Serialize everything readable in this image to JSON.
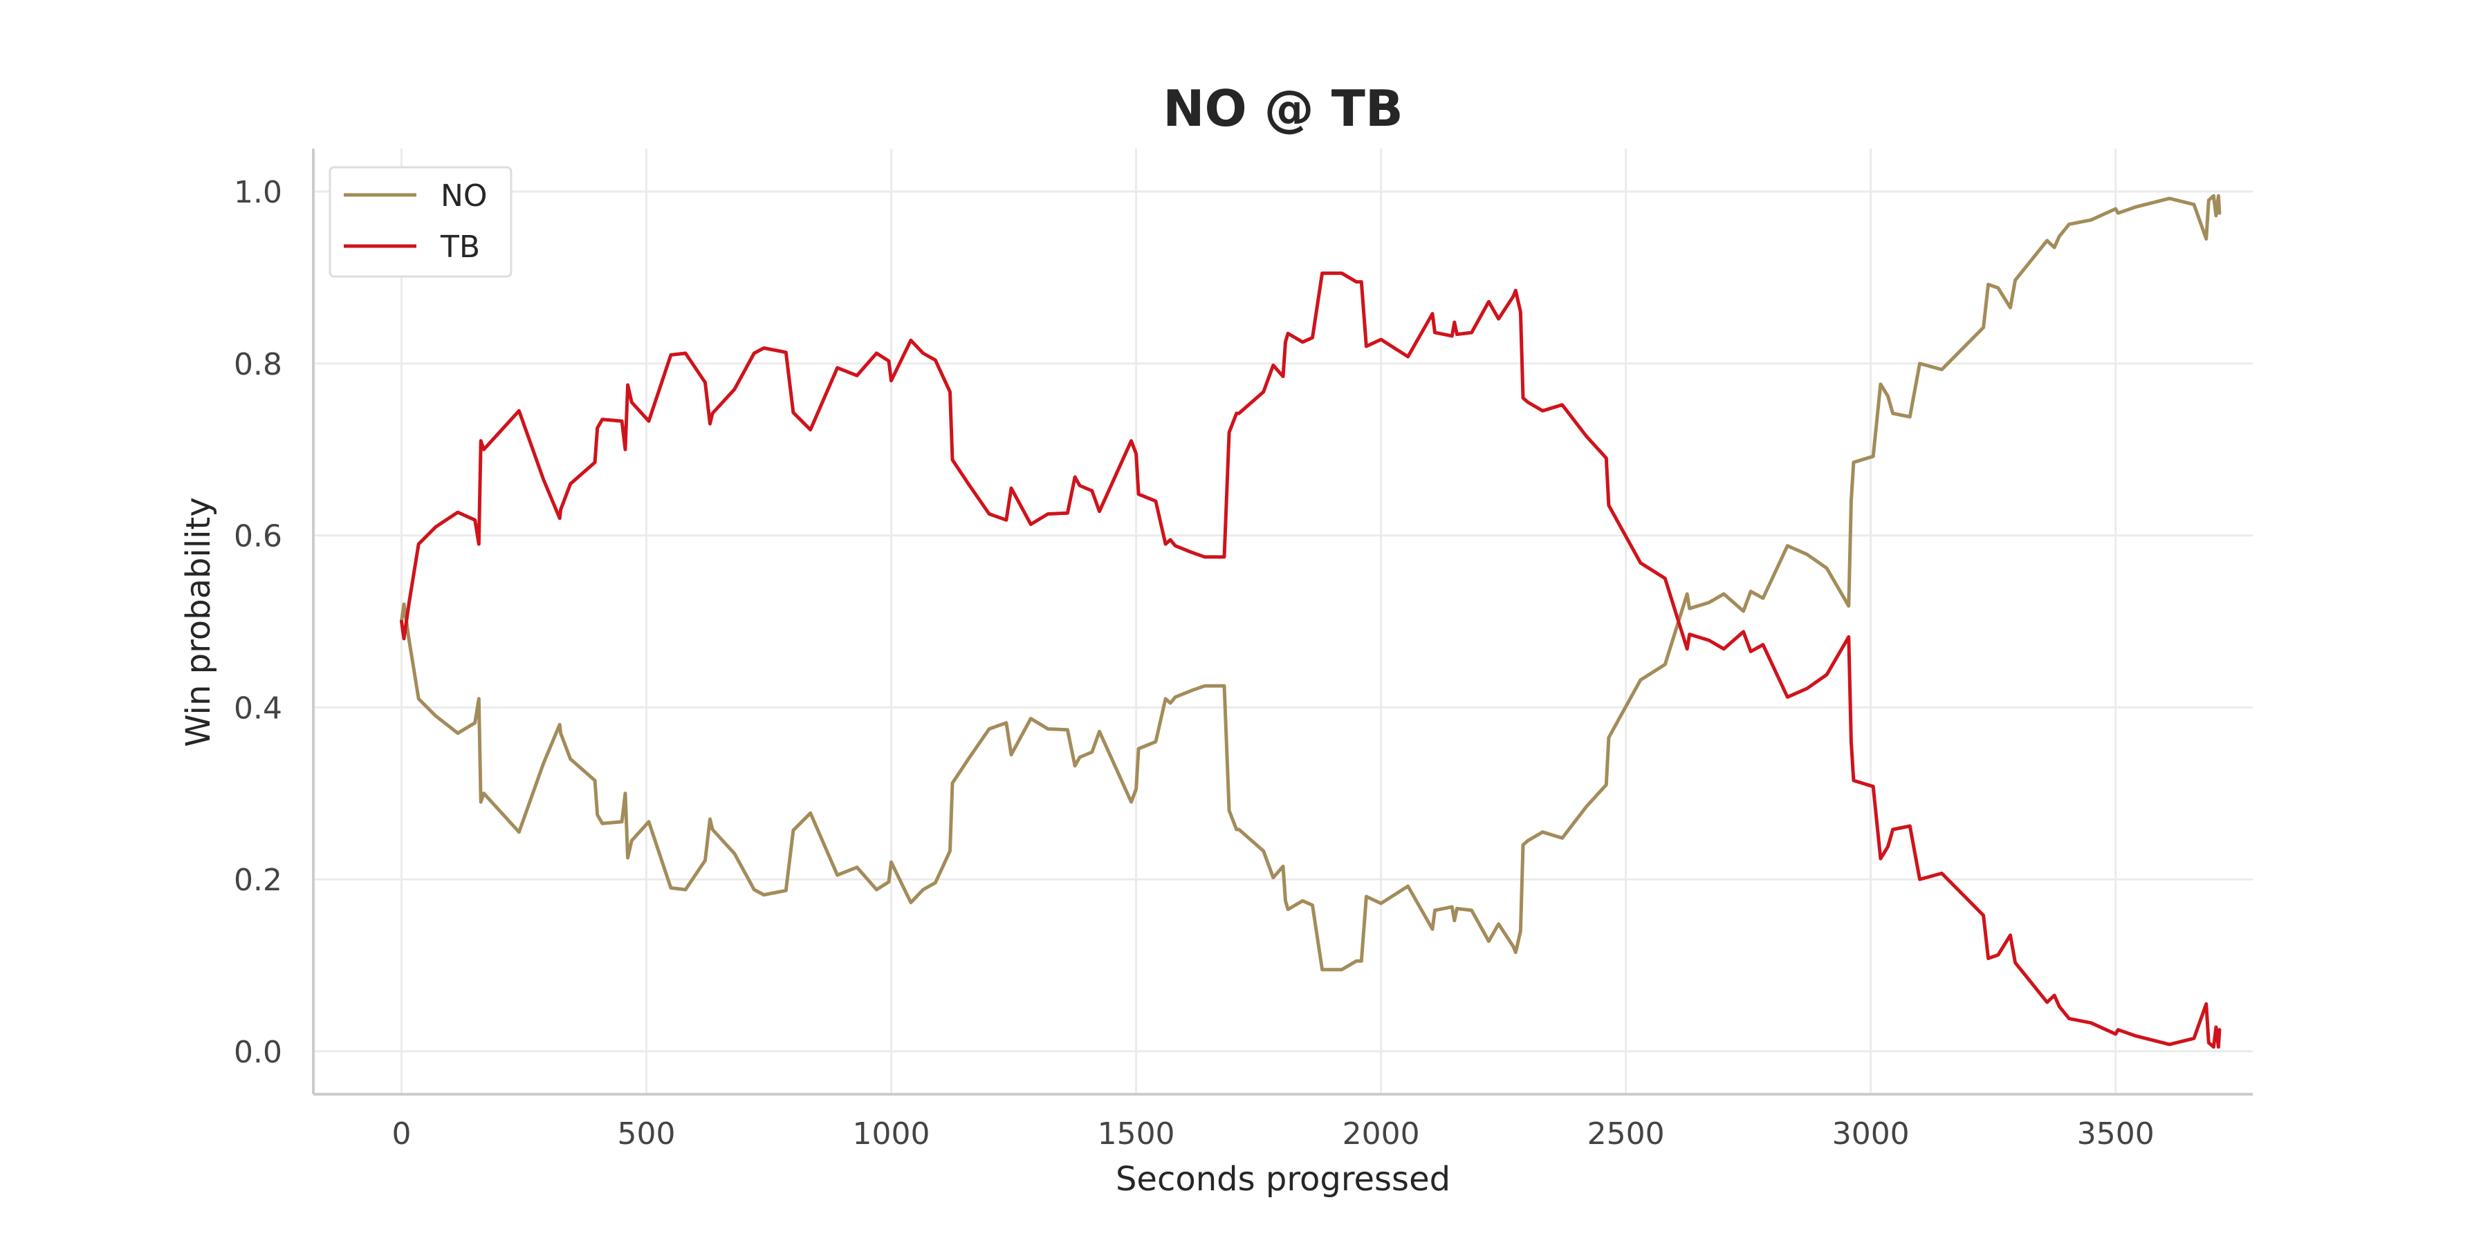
{
  "chart_data": {
    "type": "line",
    "title": "NO @ TB",
    "xlabel": "Seconds progressed",
    "ylabel": "Win probability",
    "xlim": [
      -180,
      3780
    ],
    "ylim": [
      -0.05,
      1.05
    ],
    "xticks": [
      0,
      500,
      1000,
      1500,
      2000,
      2500,
      3000,
      3500
    ],
    "yticks": [
      0.0,
      0.2,
      0.4,
      0.6,
      0.8,
      1.0
    ],
    "ytick_labels": [
      "0.0",
      "0.2",
      "0.4",
      "0.6",
      "0.8",
      "1.0"
    ],
    "grid": true,
    "legend_position": "top-left",
    "series": [
      {
        "name": "NO",
        "color": "#a38c5a",
        "points": [
          [
            0,
            0.5
          ],
          [
            5,
            0.52
          ],
          [
            15,
            0.48
          ],
          [
            35,
            0.41
          ],
          [
            70,
            0.39
          ],
          [
            115,
            0.37
          ],
          [
            150,
            0.382
          ],
          [
            158,
            0.41
          ],
          [
            162,
            0.29
          ],
          [
            168,
            0.3
          ],
          [
            200,
            0.28
          ],
          [
            240,
            0.255
          ],
          [
            290,
            0.335
          ],
          [
            323,
            0.38
          ],
          [
            325,
            0.37
          ],
          [
            345,
            0.34
          ],
          [
            395,
            0.315
          ],
          [
            400,
            0.275
          ],
          [
            410,
            0.265
          ],
          [
            450,
            0.267
          ],
          [
            457,
            0.3
          ],
          [
            462,
            0.225
          ],
          [
            470,
            0.245
          ],
          [
            505,
            0.267
          ],
          [
            550,
            0.19
          ],
          [
            580,
            0.188
          ],
          [
            620,
            0.222
          ],
          [
            630,
            0.27
          ],
          [
            635,
            0.258
          ],
          [
            680,
            0.23
          ],
          [
            720,
            0.188
          ],
          [
            740,
            0.182
          ],
          [
            785,
            0.187
          ],
          [
            800,
            0.257
          ],
          [
            835,
            0.277
          ],
          [
            890,
            0.205
          ],
          [
            930,
            0.214
          ],
          [
            970,
            0.188
          ],
          [
            995,
            0.197
          ],
          [
            1000,
            0.22
          ],
          [
            1040,
            0.173
          ],
          [
            1065,
            0.188
          ],
          [
            1090,
            0.196
          ],
          [
            1120,
            0.233
          ],
          [
            1125,
            0.312
          ],
          [
            1160,
            0.342
          ],
          [
            1200,
            0.375
          ],
          [
            1235,
            0.382
          ],
          [
            1245,
            0.345
          ],
          [
            1285,
            0.387
          ],
          [
            1320,
            0.375
          ],
          [
            1360,
            0.374
          ],
          [
            1375,
            0.332
          ],
          [
            1385,
            0.342
          ],
          [
            1410,
            0.348
          ],
          [
            1425,
            0.372
          ],
          [
            1490,
            0.29
          ],
          [
            1500,
            0.305
          ],
          [
            1505,
            0.352
          ],
          [
            1540,
            0.36
          ],
          [
            1550,
            0.385
          ],
          [
            1560,
            0.41
          ],
          [
            1570,
            0.405
          ],
          [
            1580,
            0.412
          ],
          [
            1615,
            0.42
          ],
          [
            1640,
            0.425
          ],
          [
            1680,
            0.425
          ],
          [
            1690,
            0.28
          ],
          [
            1705,
            0.258
          ],
          [
            1710,
            0.258
          ],
          [
            1760,
            0.233
          ],
          [
            1780,
            0.202
          ],
          [
            1800,
            0.215
          ],
          [
            1805,
            0.175
          ],
          [
            1810,
            0.165
          ],
          [
            1840,
            0.175
          ],
          [
            1860,
            0.17
          ],
          [
            1880,
            0.095
          ],
          [
            1920,
            0.095
          ],
          [
            1950,
            0.105
          ],
          [
            1960,
            0.105
          ],
          [
            1970,
            0.18
          ],
          [
            2000,
            0.172
          ],
          [
            2055,
            0.192
          ],
          [
            2105,
            0.142
          ],
          [
            2110,
            0.164
          ],
          [
            2145,
            0.168
          ],
          [
            2150,
            0.152
          ],
          [
            2155,
            0.166
          ],
          [
            2185,
            0.164
          ],
          [
            2220,
            0.128
          ],
          [
            2240,
            0.148
          ],
          [
            2270,
            0.122
          ],
          [
            2275,
            0.115
          ],
          [
            2285,
            0.14
          ],
          [
            2290,
            0.24
          ],
          [
            2300,
            0.245
          ],
          [
            2330,
            0.255
          ],
          [
            2370,
            0.248
          ],
          [
            2420,
            0.285
          ],
          [
            2460,
            0.31
          ],
          [
            2465,
            0.365
          ],
          [
            2530,
            0.432
          ],
          [
            2580,
            0.45
          ],
          [
            2625,
            0.532
          ],
          [
            2630,
            0.515
          ],
          [
            2670,
            0.522
          ],
          [
            2700,
            0.532
          ],
          [
            2740,
            0.512
          ],
          [
            2755,
            0.535
          ],
          [
            2780,
            0.527
          ],
          [
            2830,
            0.588
          ],
          [
            2870,
            0.578
          ],
          [
            2910,
            0.562
          ],
          [
            2955,
            0.518
          ],
          [
            2960,
            0.64
          ],
          [
            2965,
            0.685
          ],
          [
            3005,
            0.692
          ],
          [
            3020,
            0.776
          ],
          [
            3035,
            0.762
          ],
          [
            3045,
            0.742
          ],
          [
            3080,
            0.738
          ],
          [
            3100,
            0.8
          ],
          [
            3145,
            0.793
          ],
          [
            3230,
            0.842
          ],
          [
            3240,
            0.892
          ],
          [
            3260,
            0.888
          ],
          [
            3285,
            0.865
          ],
          [
            3295,
            0.897
          ],
          [
            3360,
            0.943
          ],
          [
            3375,
            0.935
          ],
          [
            3385,
            0.948
          ],
          [
            3405,
            0.962
          ],
          [
            3450,
            0.967
          ],
          [
            3500,
            0.98
          ],
          [
            3505,
            0.975
          ],
          [
            3540,
            0.982
          ],
          [
            3610,
            0.992
          ],
          [
            3660,
            0.985
          ],
          [
            3685,
            0.945
          ],
          [
            3690,
            0.99
          ],
          [
            3700,
            0.995
          ],
          [
            3705,
            0.972
          ],
          [
            3710,
            0.995
          ],
          [
            3712,
            0.975
          ]
        ]
      },
      {
        "name": "TB",
        "color": "#d0131b",
        "points": [
          [
            0,
            0.5
          ],
          [
            5,
            0.48
          ],
          [
            15,
            0.52
          ],
          [
            35,
            0.59
          ],
          [
            70,
            0.61
          ],
          [
            115,
            0.627
          ],
          [
            150,
            0.618
          ],
          [
            158,
            0.59
          ],
          [
            162,
            0.71
          ],
          [
            168,
            0.7
          ],
          [
            200,
            0.72
          ],
          [
            240,
            0.745
          ],
          [
            290,
            0.665
          ],
          [
            323,
            0.62
          ],
          [
            325,
            0.63
          ],
          [
            345,
            0.66
          ],
          [
            395,
            0.685
          ],
          [
            400,
            0.725
          ],
          [
            410,
            0.735
          ],
          [
            450,
            0.733
          ],
          [
            457,
            0.7
          ],
          [
            462,
            0.775
          ],
          [
            470,
            0.755
          ],
          [
            505,
            0.733
          ],
          [
            550,
            0.81
          ],
          [
            580,
            0.812
          ],
          [
            620,
            0.778
          ],
          [
            630,
            0.73
          ],
          [
            635,
            0.742
          ],
          [
            680,
            0.77
          ],
          [
            720,
            0.812
          ],
          [
            740,
            0.818
          ],
          [
            785,
            0.813
          ],
          [
            800,
            0.743
          ],
          [
            835,
            0.723
          ],
          [
            890,
            0.795
          ],
          [
            930,
            0.786
          ],
          [
            970,
            0.812
          ],
          [
            995,
            0.803
          ],
          [
            1000,
            0.78
          ],
          [
            1040,
            0.827
          ],
          [
            1065,
            0.812
          ],
          [
            1090,
            0.804
          ],
          [
            1120,
            0.767
          ],
          [
            1125,
            0.688
          ],
          [
            1160,
            0.658
          ],
          [
            1200,
            0.625
          ],
          [
            1235,
            0.618
          ],
          [
            1245,
            0.655
          ],
          [
            1285,
            0.613
          ],
          [
            1320,
            0.625
          ],
          [
            1360,
            0.626
          ],
          [
            1375,
            0.668
          ],
          [
            1385,
            0.658
          ],
          [
            1410,
            0.652
          ],
          [
            1425,
            0.628
          ],
          [
            1490,
            0.71
          ],
          [
            1500,
            0.695
          ],
          [
            1505,
            0.648
          ],
          [
            1540,
            0.64
          ],
          [
            1550,
            0.615
          ],
          [
            1560,
            0.59
          ],
          [
            1570,
            0.595
          ],
          [
            1580,
            0.588
          ],
          [
            1615,
            0.58
          ],
          [
            1640,
            0.575
          ],
          [
            1680,
            0.575
          ],
          [
            1690,
            0.72
          ],
          [
            1705,
            0.742
          ],
          [
            1710,
            0.742
          ],
          [
            1760,
            0.767
          ],
          [
            1780,
            0.798
          ],
          [
            1800,
            0.785
          ],
          [
            1805,
            0.825
          ],
          [
            1810,
            0.835
          ],
          [
            1840,
            0.825
          ],
          [
            1860,
            0.83
          ],
          [
            1880,
            0.905
          ],
          [
            1920,
            0.905
          ],
          [
            1950,
            0.895
          ],
          [
            1960,
            0.895
          ],
          [
            1970,
            0.82
          ],
          [
            2000,
            0.828
          ],
          [
            2055,
            0.808
          ],
          [
            2105,
            0.858
          ],
          [
            2110,
            0.836
          ],
          [
            2145,
            0.832
          ],
          [
            2150,
            0.848
          ],
          [
            2155,
            0.834
          ],
          [
            2185,
            0.836
          ],
          [
            2220,
            0.872
          ],
          [
            2240,
            0.852
          ],
          [
            2270,
            0.878
          ],
          [
            2275,
            0.885
          ],
          [
            2285,
            0.86
          ],
          [
            2290,
            0.76
          ],
          [
            2300,
            0.755
          ],
          [
            2330,
            0.745
          ],
          [
            2370,
            0.752
          ],
          [
            2420,
            0.715
          ],
          [
            2460,
            0.69
          ],
          [
            2465,
            0.635
          ],
          [
            2530,
            0.568
          ],
          [
            2580,
            0.55
          ],
          [
            2625,
            0.468
          ],
          [
            2630,
            0.485
          ],
          [
            2670,
            0.478
          ],
          [
            2700,
            0.468
          ],
          [
            2740,
            0.488
          ],
          [
            2755,
            0.465
          ],
          [
            2780,
            0.473
          ],
          [
            2830,
            0.412
          ],
          [
            2870,
            0.422
          ],
          [
            2910,
            0.438
          ],
          [
            2955,
            0.482
          ],
          [
            2960,
            0.36
          ],
          [
            2965,
            0.315
          ],
          [
            3005,
            0.308
          ],
          [
            3020,
            0.224
          ],
          [
            3035,
            0.238
          ],
          [
            3045,
            0.258
          ],
          [
            3080,
            0.262
          ],
          [
            3100,
            0.2
          ],
          [
            3145,
            0.207
          ],
          [
            3230,
            0.158
          ],
          [
            3240,
            0.108
          ],
          [
            3260,
            0.112
          ],
          [
            3285,
            0.135
          ],
          [
            3295,
            0.103
          ],
          [
            3360,
            0.057
          ],
          [
            3375,
            0.065
          ],
          [
            3385,
            0.052
          ],
          [
            3405,
            0.038
          ],
          [
            3450,
            0.033
          ],
          [
            3500,
            0.02
          ],
          [
            3505,
            0.025
          ],
          [
            3540,
            0.018
          ],
          [
            3610,
            0.008
          ],
          [
            3660,
            0.015
          ],
          [
            3685,
            0.055
          ],
          [
            3690,
            0.01
          ],
          [
            3700,
            0.005
          ],
          [
            3705,
            0.028
          ],
          [
            3710,
            0.005
          ],
          [
            3712,
            0.025
          ]
        ]
      }
    ]
  }
}
